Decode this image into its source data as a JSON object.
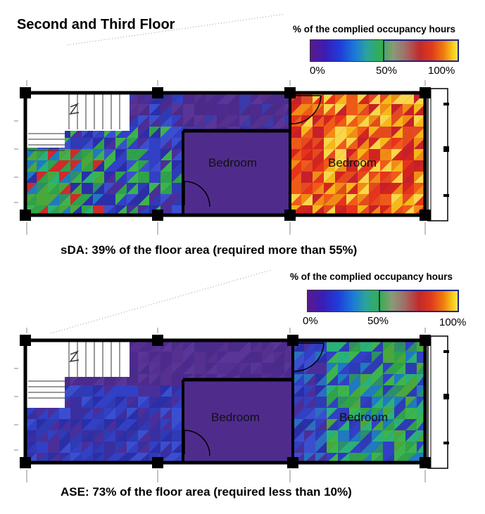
{
  "title": "Second and Third Floor",
  "legend": {
    "title": "% of the complied occupancy hours",
    "ticks": [
      "0%",
      "50%",
      "100%"
    ]
  },
  "plans": [
    {
      "rooms": [
        "Bedroom",
        "Bedroom"
      ],
      "caption": "sDA: 39% of the floor area (required more than 55%)"
    },
    {
      "rooms": [
        "Bedroom",
        "Bedroom"
      ],
      "caption": "ASE: 73% of the floor area (required less than 10%)"
    }
  ],
  "colors": {
    "low": "#5a1a8c",
    "mid": "#33b04b",
    "high": "#fbe860",
    "highlight_border": "#1c2488"
  }
}
